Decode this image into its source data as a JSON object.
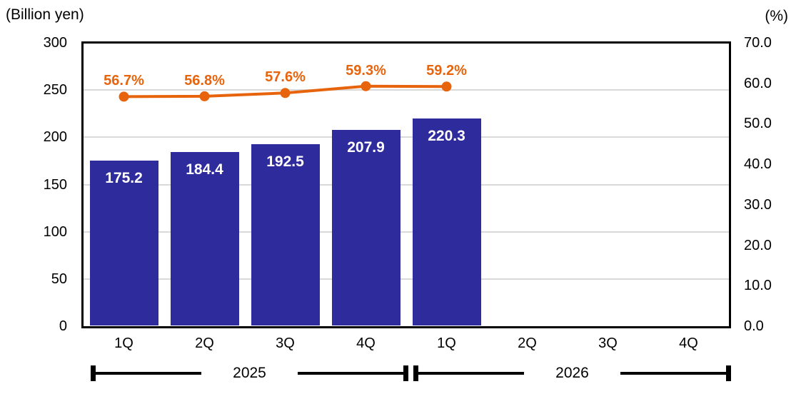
{
  "chart_data": {
    "type": "combo-bar-line",
    "left_axis": {
      "title": "(Billion yen)",
      "min": 0,
      "max": 300,
      "tick_step": 50,
      "tick_labels": [
        "0",
        "50",
        "100",
        "150",
        "200",
        "250",
        "300"
      ]
    },
    "right_axis": {
      "title": "(%)",
      "min": 0,
      "max": 70,
      "tick_step": 10,
      "tick_labels": [
        "0.0",
        "10.0",
        "20.0",
        "30.0",
        "40.0",
        "50.0",
        "60.0",
        "70.0"
      ]
    },
    "categories": [
      "1Q",
      "2Q",
      "3Q",
      "4Q",
      "1Q",
      "2Q",
      "3Q",
      "4Q"
    ],
    "year_groups": [
      {
        "label": "2025",
        "start": 0,
        "end": 3
      },
      {
        "label": "2026",
        "start": 4,
        "end": 7
      }
    ],
    "series": [
      {
        "name": "quarterly-revenue-bars",
        "type": "bar",
        "axis": "left",
        "color": "#2E2B9C",
        "data_label_color": "#FFFFFF",
        "values": [
          175.2,
          184.4,
          192.5,
          207.9,
          220.3,
          null,
          null,
          null
        ],
        "data_labels": [
          "175.2",
          "184.4",
          "192.5",
          "207.9",
          "220.3",
          null,
          null,
          null
        ]
      },
      {
        "name": "ratio-percentage-line",
        "type": "line",
        "axis": "right",
        "color": "#E7640D",
        "marker": "circle",
        "values": [
          56.7,
          56.8,
          57.6,
          59.3,
          59.2,
          null,
          null,
          null
        ],
        "data_labels": [
          "56.7%",
          "56.8%",
          "57.6%",
          "59.3%",
          "59.2%",
          null,
          null,
          null
        ]
      }
    ],
    "gridlines": {
      "axis": "left",
      "step": 50,
      "color": "#D9D9D9"
    },
    "plot_border_color": "#000000",
    "background_color": "#FFFFFF",
    "legend": "none"
  }
}
